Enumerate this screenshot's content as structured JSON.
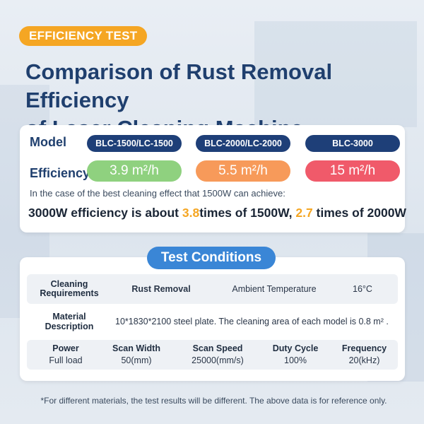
{
  "tag": "EFFICIENCY TEST",
  "title_line1": "Comparison of Rust Removal Efficiency",
  "title_line2": "of Laser Cleaning Machine",
  "comparison": {
    "model_label": "Model",
    "efficiency_label": "Efficiency",
    "models": [
      "BLC-1500/LC-1500",
      "BLC-2000/LC-2000",
      "BLC-3000"
    ],
    "efficiencies": [
      "3.9 m²/h",
      "5.5 m²/h",
      "15 m²/h"
    ],
    "note": "In the case of the best cleaning effect that 1500W can achieve:",
    "summary_part1": "3000W efficiency is about ",
    "summary_val1": "3.8",
    "summary_part2": "times of 1500W, ",
    "summary_val2": "2.7",
    "summary_part3": " times of 2000W",
    "colors": {
      "model_pill": "#1e3f78",
      "eff1": "#8fd17f",
      "eff2": "#f79a5a",
      "eff3": "#f05a6a",
      "highlight": "#f5a623"
    }
  },
  "test_conditions": {
    "title": "Test Conditions",
    "row1": {
      "label": "Cleaning Requirements",
      "value": "Rust Removal",
      "label2": "Ambient Temperature",
      "value2": "16°C"
    },
    "row2": {
      "label": "Material Description",
      "value": "10*1830*2100 steel plate. The cleaning area of each model is 0.8 m² ."
    },
    "row3": {
      "headers": [
        "Power",
        "Scan Width",
        "Scan Speed",
        "Duty Cycle",
        "Frequency"
      ],
      "values": [
        "Full load",
        "50(mm)",
        "25000(mm/s)",
        "100%",
        "20(kHz)"
      ]
    }
  },
  "footnote": "*For different materials, the test results will be different. The above data is for reference only."
}
